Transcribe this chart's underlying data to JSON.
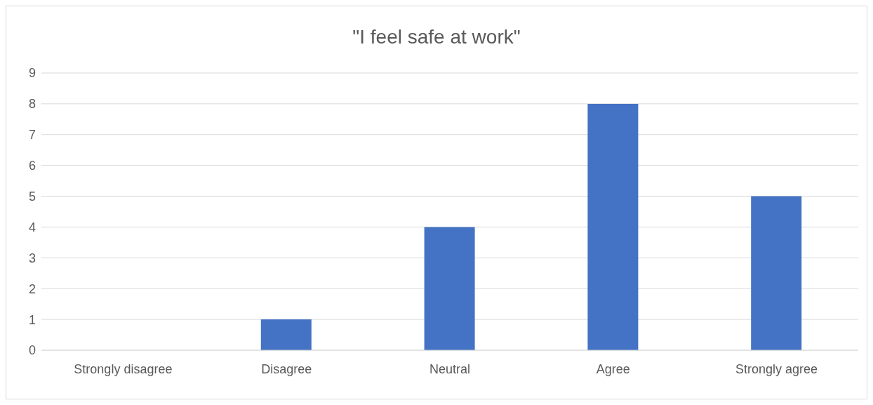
{
  "chart_data": {
    "type": "bar",
    "title": "\"I feel safe at work\"",
    "categories": [
      "Strongly disagree",
      "Disagree",
      "Neutral",
      "Agree",
      "Strongly agree"
    ],
    "values": [
      0,
      1,
      4,
      8,
      5
    ],
    "color": "#4472c4",
    "ylim": [
      0,
      9
    ],
    "yticks": [
      0,
      1,
      2,
      3,
      4,
      5,
      6,
      7,
      8,
      9
    ],
    "grid": "y"
  }
}
